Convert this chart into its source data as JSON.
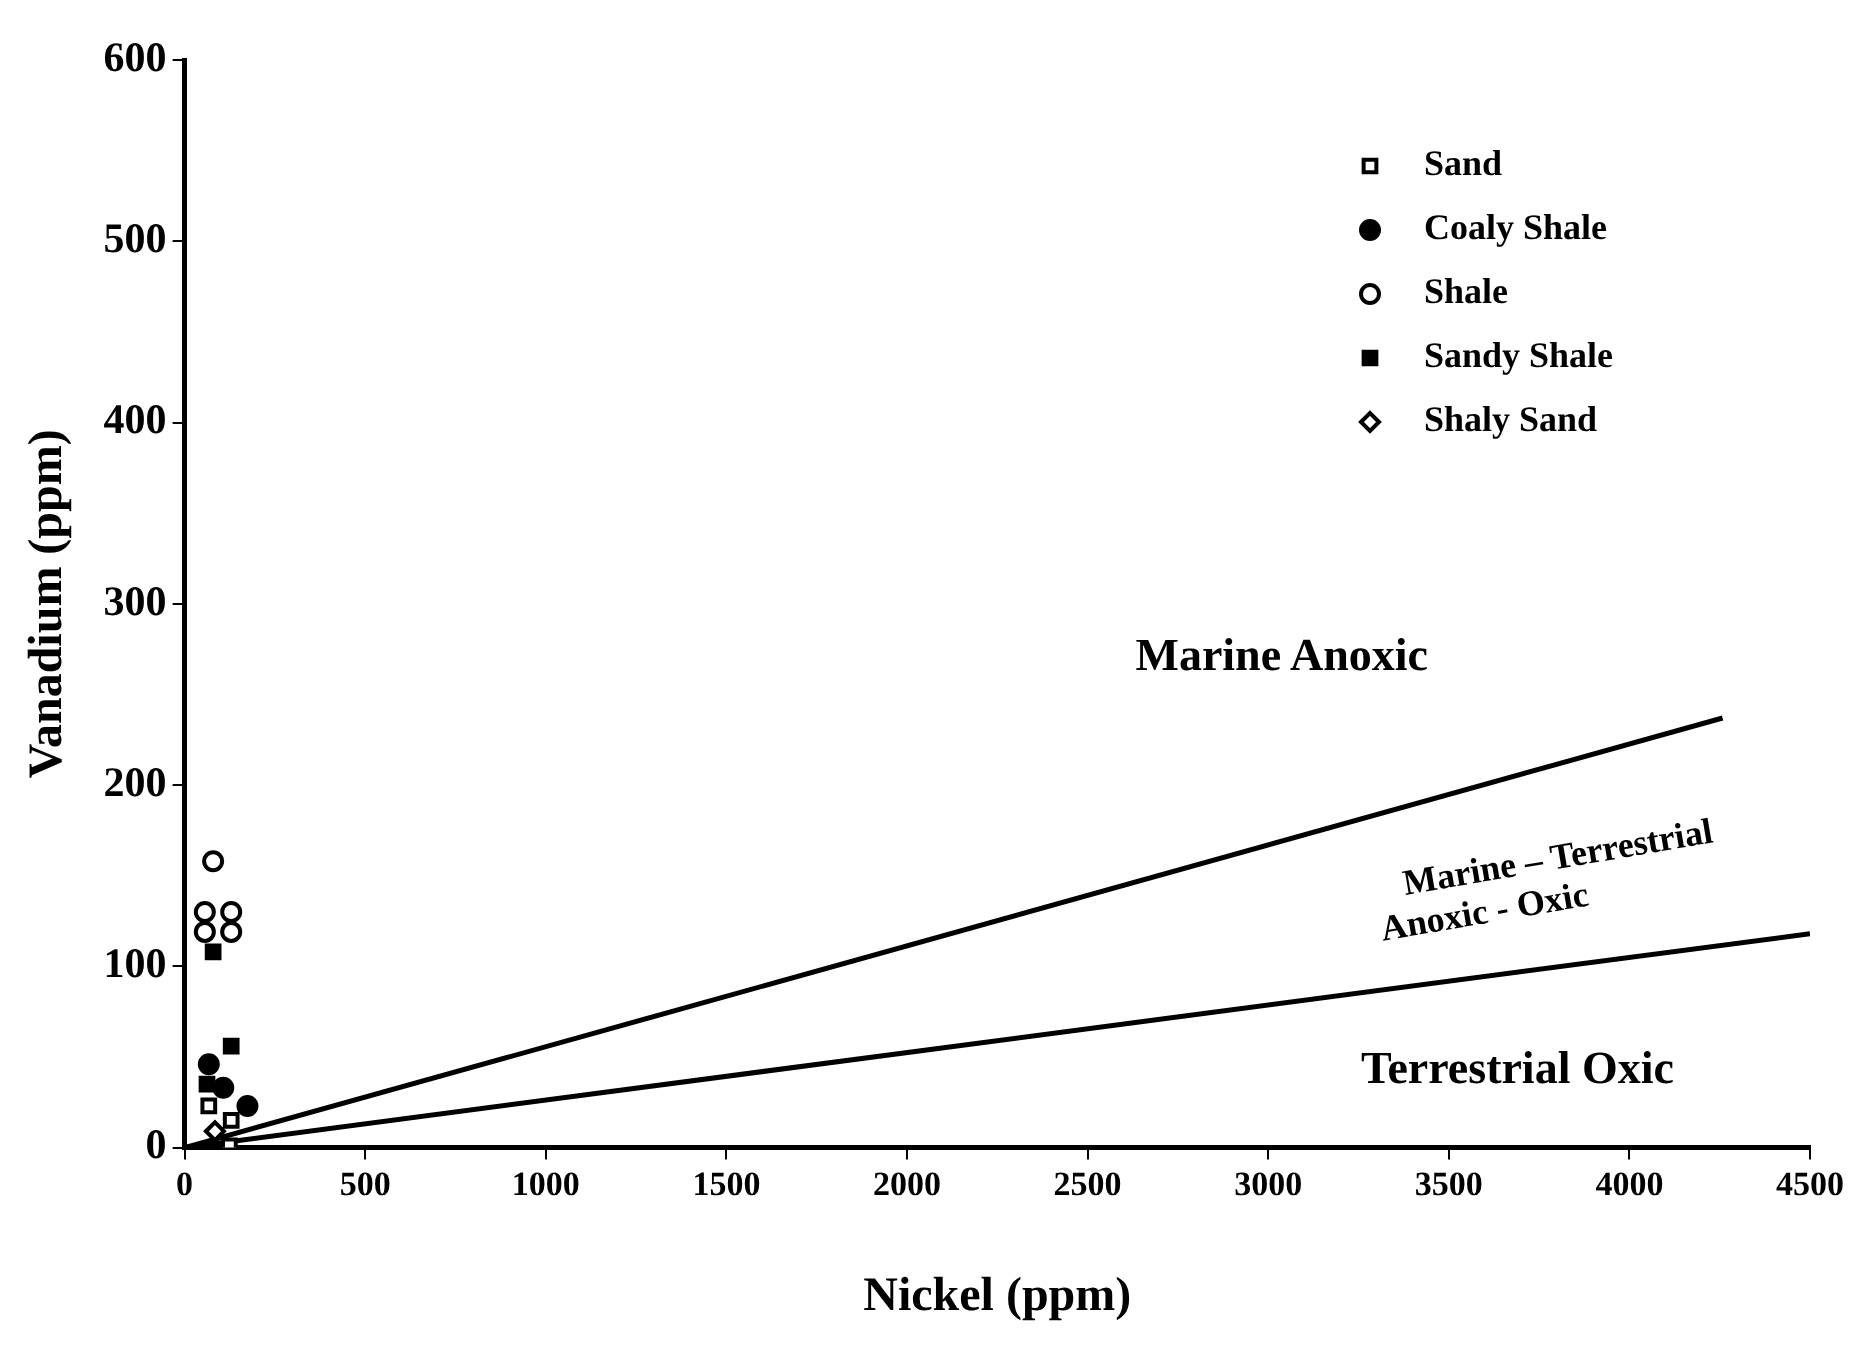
{
  "chart_data": {
    "type": "scatter",
    "xlabel": "Nickel (ppm)",
    "ylabel": "Vanadium (ppm)",
    "xlim": [
      0,
      4500
    ],
    "xticks": [
      0,
      500,
      1000,
      1500,
      2000,
      2500,
      3000,
      3500,
      4000,
      4500
    ],
    "ylim": [
      0,
      600
    ],
    "yticks": [
      0,
      100,
      200,
      300,
      400,
      500,
      600
    ],
    "grid": false,
    "legend": "top right",
    "series": [
      {
        "name": "Sand",
        "marker": "square",
        "color": "#ffffff",
        "x": [
          67,
          129,
          124
        ],
        "values": [
          23,
          15,
          1
        ]
      },
      {
        "name": "Coaly Shale",
        "marker": "circle",
        "color": "#000000",
        "x": [
          67,
          107,
          174
        ],
        "values": [
          46,
          33,
          23
        ]
      },
      {
        "name": "Shale",
        "marker": "circle",
        "color": "#ffffff",
        "x": [
          79,
          56,
          129,
          56,
          129
        ],
        "values": [
          158,
          130,
          130,
          119,
          119
        ]
      },
      {
        "name": "Sandy Shale",
        "marker": "square",
        "color": "#000000",
        "x": [
          79,
          129,
          62
        ],
        "values": [
          108,
          56,
          35
        ]
      },
      {
        "name": "Shaly Sand",
        "marker": "diamond",
        "color": "#ffffff",
        "x": [
          84
        ],
        "values": [
          9
        ]
      },
      {
        "type": "line",
        "marker": "none",
        "color": "#000000",
        "x": [
          0,
          4258
        ],
        "values": [
          0,
          237
        ]
      },
      {
        "type": "line",
        "marker": "none",
        "color": "#000000",
        "x": [
          0,
          4500
        ],
        "values": [
          0,
          118
        ]
      }
    ],
    "annotations": [
      "Marine Anoxic",
      "Marine – Terrestrial",
      "Anoxic - Oxic",
      "Terrestrial Oxic"
    ]
  }
}
